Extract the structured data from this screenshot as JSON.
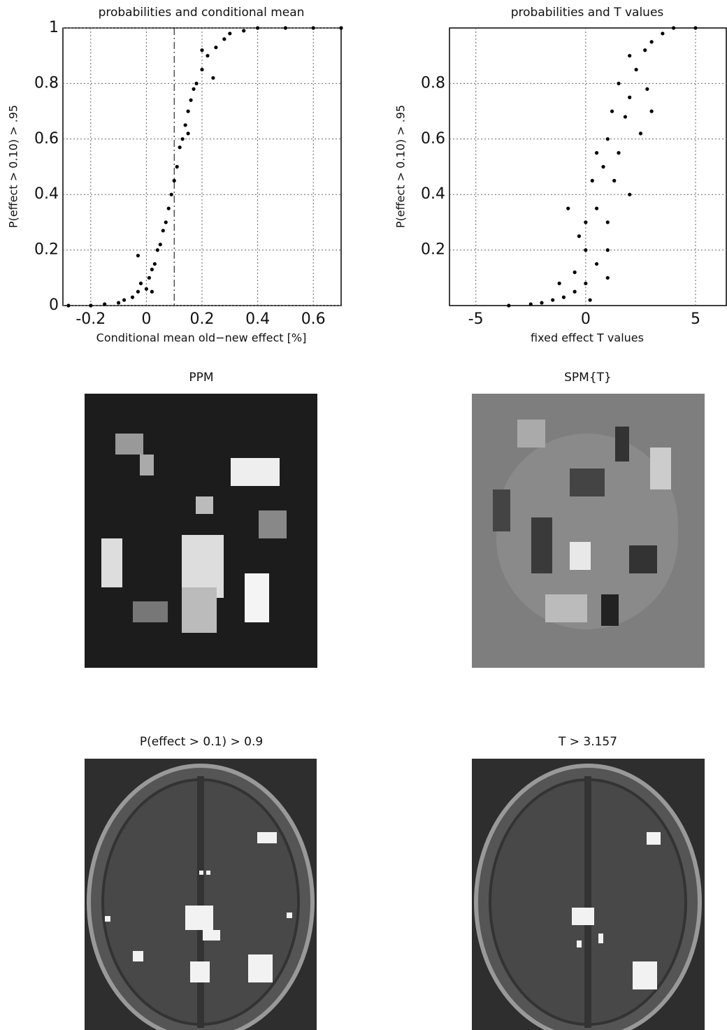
{
  "chart_data": [
    {
      "type": "scatter",
      "title": "probabilities and conditional mean",
      "xlabel": "Conditional mean old−new effect [%]",
      "ylabel": "P(effect > 0.10) > .95",
      "xlim": [
        -0.3,
        0.7
      ],
      "xticks": [
        -0.2,
        0,
        0.2,
        0.4,
        0.6
      ],
      "ylim": [
        0,
        1
      ],
      "yticks": [
        0,
        0.2,
        0.4,
        0.6,
        0.8,
        1
      ],
      "grid": true,
      "color": "#000000",
      "threshold_x": 0.1,
      "x": [
        -0.28,
        -0.2,
        -0.15,
        -0.1,
        -0.08,
        -0.05,
        -0.03,
        -0.02,
        0,
        0.01,
        0.02,
        0.03,
        0.04,
        0.05,
        0.06,
        0.07,
        0.08,
        0.09,
        0.1,
        0.11,
        0.12,
        0.13,
        0.14,
        0.15,
        0.16,
        0.17,
        0.18,
        0.2,
        0.22,
        0.25,
        0.28,
        0.3,
        0.35,
        0.4,
        0.5,
        0.6,
        0.7,
        -0.03,
        0.02,
        0.24,
        0.2,
        0.15
      ],
      "values": [
        0,
        0,
        0.005,
        0.01,
        0.02,
        0.03,
        0.05,
        0.08,
        0.06,
        0.1,
        0.13,
        0.15,
        0.2,
        0.22,
        0.27,
        0.3,
        0.35,
        0.4,
        0.45,
        0.5,
        0.57,
        0.6,
        0.65,
        0.7,
        0.74,
        0.78,
        0.8,
        0.85,
        0.9,
        0.93,
        0.96,
        0.98,
        0.99,
        1,
        1,
        1,
        1,
        0.18,
        0.05,
        0.82,
        0.92,
        0.62
      ]
    },
    {
      "type": "scatter",
      "title": "probabilities and T values",
      "xlabel": "fixed effect T values",
      "ylabel": "P(effect > 0.10) > .95",
      "xlim": [
        -6.2,
        6.4
      ],
      "xticks": [
        -5,
        0,
        5
      ],
      "ylim": [
        0,
        1
      ],
      "yticks": [
        0.2,
        0.4,
        0.6,
        0.8
      ],
      "grid": true,
      "color": "#000000",
      "x": [
        -3.5,
        -2.5,
        -2,
        -1.5,
        -1,
        -0.5,
        0,
        -0.5,
        0,
        0.5,
        1,
        0,
        0.5,
        1,
        -0.3,
        0.3,
        0.8,
        1.3,
        0.5,
        1,
        1.5,
        1.2,
        1.8,
        2,
        1.5,
        2.3,
        2,
        2.7,
        3,
        3.5,
        4,
        5,
        2.5,
        -0.8,
        2,
        0.2,
        -1.2,
        1,
        2.8,
        3
      ],
      "values": [
        0,
        0.005,
        0.01,
        0.02,
        0.03,
        0.05,
        0.08,
        0.12,
        0.2,
        0.15,
        0.1,
        0.3,
        0.35,
        0.3,
        0.25,
        0.45,
        0.5,
        0.45,
        0.55,
        0.6,
        0.55,
        0.7,
        0.68,
        0.75,
        0.8,
        0.85,
        0.9,
        0.92,
        0.95,
        0.98,
        1,
        1,
        0.62,
        0.35,
        0.4,
        0.02,
        0.08,
        0.2,
        0.78,
        0.7
      ]
    }
  ],
  "images": [
    {
      "title": "PPM"
    },
    {
      "title": "SPM{T}"
    },
    {
      "title": "P(effect > 0.1) > 0.9"
    },
    {
      "title": "T > 3.157"
    }
  ]
}
